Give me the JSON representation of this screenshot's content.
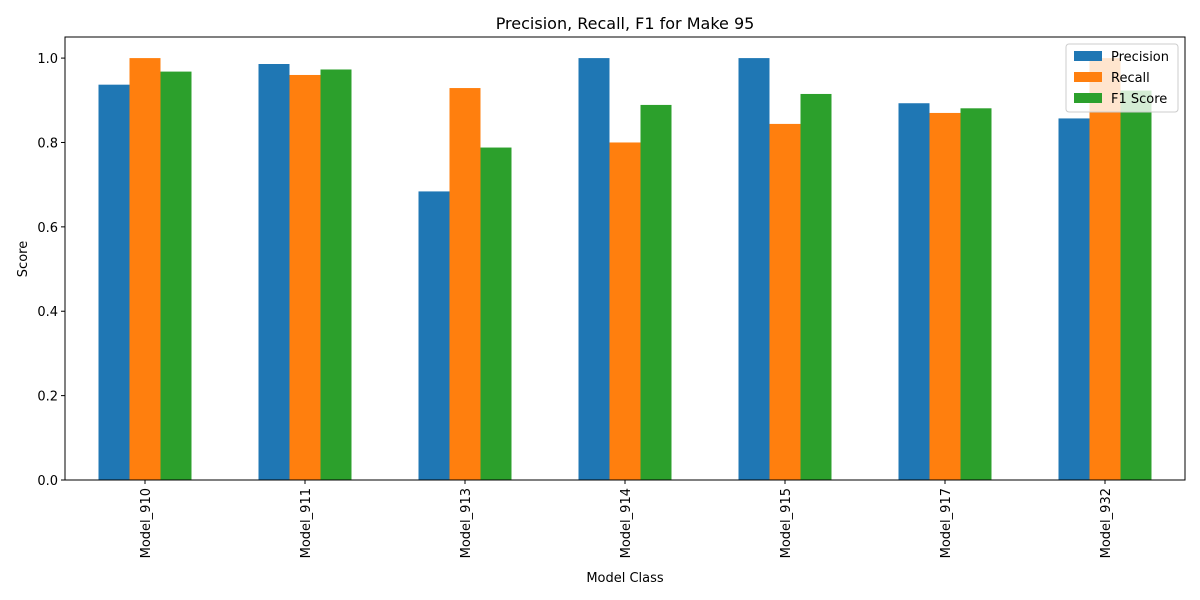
{
  "chart_data": {
    "type": "bar",
    "title": "Precision, Recall, F1 for Make 95",
    "xlabel": "Model Class",
    "ylabel": "Score",
    "ylim": [
      0,
      1.05
    ],
    "yticks": [
      0.0,
      0.2,
      0.4,
      0.6,
      0.8,
      1.0
    ],
    "ytick_labels": [
      "0.0",
      "0.2",
      "0.4",
      "0.6",
      "0.8",
      "1.0"
    ],
    "categories": [
      "Model_910",
      "Model_911",
      "Model_913",
      "Model_914",
      "Model_915",
      "Model_917",
      "Model_932"
    ],
    "series": [
      {
        "name": "Precision",
        "color": "#1f77b4",
        "values": [
          0.937,
          0.986,
          0.684,
          1.0,
          1.0,
          0.893,
          0.857
        ]
      },
      {
        "name": "Recall",
        "color": "#ff7f0e",
        "values": [
          1.0,
          0.96,
          0.929,
          0.8,
          0.844,
          0.87,
          1.0
        ]
      },
      {
        "name": "F1 Score",
        "color": "#2ca02c",
        "values": [
          0.968,
          0.973,
          0.788,
          0.889,
          0.915,
          0.881,
          0.923
        ]
      }
    ],
    "legend_position": "top-right",
    "grid": false
  }
}
